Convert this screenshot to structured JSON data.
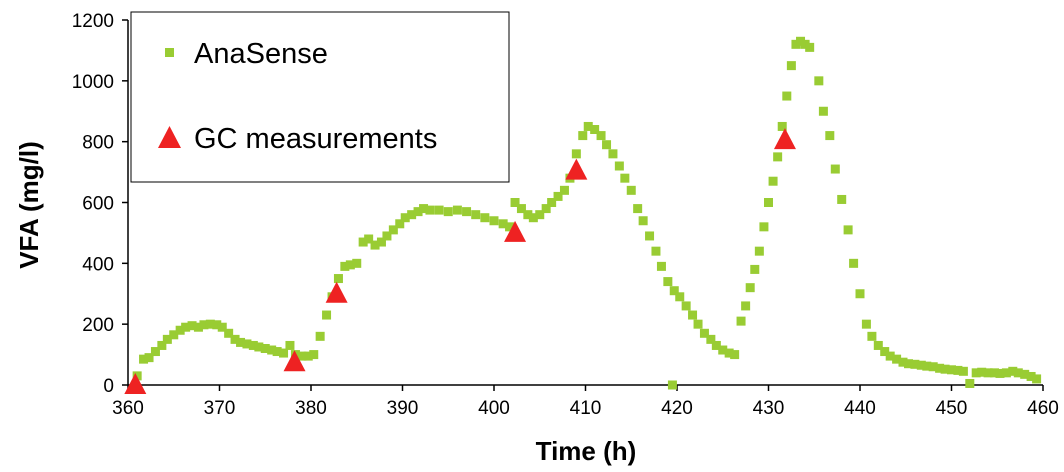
{
  "chart_data": {
    "type": "scatter",
    "title": "",
    "xlabel": "Time (h)",
    "ylabel": "VFA (mg/l)",
    "xlim": [
      360,
      460
    ],
    "ylim": [
      0,
      1200
    ],
    "xticks": [
      360,
      370,
      380,
      390,
      400,
      410,
      420,
      430,
      440,
      450,
      460
    ],
    "yticks": [
      0,
      200,
      400,
      600,
      800,
      1000,
      1200
    ],
    "grid": false,
    "legend": "top-left",
    "series": [
      {
        "name": "AnaSense",
        "marker": "square",
        "color": "#99cc33",
        "points": [
          [
            361,
            30
          ],
          [
            361.7,
            85
          ],
          [
            362.3,
            90
          ],
          [
            363,
            110
          ],
          [
            363.7,
            130
          ],
          [
            364.3,
            150
          ],
          [
            365,
            165
          ],
          [
            365.7,
            180
          ],
          [
            366.3,
            190
          ],
          [
            367,
            195
          ],
          [
            367.7,
            190
          ],
          [
            368.3,
            198
          ],
          [
            369,
            200
          ],
          [
            369.7,
            198
          ],
          [
            370.3,
            190
          ],
          [
            371,
            170
          ],
          [
            371.7,
            150
          ],
          [
            372.3,
            140
          ],
          [
            373,
            135
          ],
          [
            373.7,
            130
          ],
          [
            374.3,
            125
          ],
          [
            375,
            120
          ],
          [
            375.7,
            115
          ],
          [
            376.3,
            110
          ],
          [
            377,
            105
          ],
          [
            377.7,
            130
          ],
          [
            378.3,
            100
          ],
          [
            379,
            95
          ],
          [
            379.7,
            95
          ],
          [
            380.3,
            100
          ],
          [
            381,
            160
          ],
          [
            381.7,
            230
          ],
          [
            382.3,
            290
          ],
          [
            383,
            350
          ],
          [
            383.7,
            390
          ],
          [
            384.3,
            395
          ],
          [
            385,
            400
          ],
          [
            385.7,
            470
          ],
          [
            386.3,
            480
          ],
          [
            387,
            460
          ],
          [
            387.7,
            470
          ],
          [
            388.3,
            490
          ],
          [
            389,
            510
          ],
          [
            389.7,
            530
          ],
          [
            390.3,
            550
          ],
          [
            391,
            560
          ],
          [
            391.7,
            570
          ],
          [
            392.3,
            580
          ],
          [
            393,
            575
          ],
          [
            394,
            575
          ],
          [
            395,
            570
          ],
          [
            396,
            575
          ],
          [
            397,
            570
          ],
          [
            398,
            560
          ],
          [
            399,
            550
          ],
          [
            400,
            540
          ],
          [
            401,
            530
          ],
          [
            401.7,
            520
          ],
          [
            402.3,
            600
          ],
          [
            403,
            580
          ],
          [
            403.7,
            560
          ],
          [
            404.3,
            550
          ],
          [
            405,
            560
          ],
          [
            405.7,
            580
          ],
          [
            406.3,
            600
          ],
          [
            407,
            620
          ],
          [
            407.7,
            640
          ],
          [
            408.3,
            680
          ],
          [
            409,
            760
          ],
          [
            409.7,
            820
          ],
          [
            410.3,
            850
          ],
          [
            411,
            840
          ],
          [
            411.7,
            820
          ],
          [
            412.3,
            790
          ],
          [
            413,
            760
          ],
          [
            413.7,
            720
          ],
          [
            414.3,
            680
          ],
          [
            415,
            640
          ],
          [
            415.7,
            580
          ],
          [
            416.3,
            540
          ],
          [
            417,
            490
          ],
          [
            417.7,
            440
          ],
          [
            418.3,
            390
          ],
          [
            419,
            340
          ],
          [
            419.7,
            310
          ],
          [
            420.3,
            290
          ],
          [
            421,
            260
          ],
          [
            421.7,
            230
          ],
          [
            422.3,
            200
          ],
          [
            423,
            170
          ],
          [
            423.7,
            150
          ],
          [
            424.3,
            130
          ],
          [
            425,
            115
          ],
          [
            425.7,
            105
          ],
          [
            426.3,
            100
          ],
          [
            419.5,
            0
          ],
          [
            427,
            210
          ],
          [
            427.5,
            260
          ],
          [
            428,
            320
          ],
          [
            428.5,
            380
          ],
          [
            429,
            440
          ],
          [
            429.5,
            520
          ],
          [
            430,
            600
          ],
          [
            430.5,
            670
          ],
          [
            431,
            750
          ],
          [
            431.5,
            850
          ],
          [
            432,
            950
          ],
          [
            432.5,
            1050
          ],
          [
            433,
            1120
          ],
          [
            433.5,
            1130
          ],
          [
            434,
            1120
          ],
          [
            434.5,
            1110
          ],
          [
            435.5,
            1000
          ],
          [
            436,
            900
          ],
          [
            436.7,
            820
          ],
          [
            437.3,
            710
          ],
          [
            438,
            610
          ],
          [
            438.7,
            510
          ],
          [
            439.3,
            400
          ],
          [
            440,
            300
          ],
          [
            440.7,
            200
          ],
          [
            441.3,
            160
          ],
          [
            442,
            130
          ],
          [
            442.7,
            110
          ],
          [
            443.3,
            95
          ],
          [
            444,
            85
          ],
          [
            444.7,
            75
          ],
          [
            445.3,
            70
          ],
          [
            446,
            68
          ],
          [
            446.7,
            65
          ],
          [
            447.3,
            62
          ],
          [
            448,
            60
          ],
          [
            448.7,
            55
          ],
          [
            449.3,
            52
          ],
          [
            450,
            50
          ],
          [
            450.7,
            48
          ],
          [
            451.3,
            45
          ],
          [
            452,
            5
          ],
          [
            452.7,
            40
          ],
          [
            453.3,
            42
          ],
          [
            454,
            40
          ],
          [
            454.7,
            40
          ],
          [
            455.3,
            38
          ],
          [
            456,
            40
          ],
          [
            456.7,
            45
          ],
          [
            457.3,
            40
          ],
          [
            458,
            35
          ],
          [
            458.7,
            28
          ],
          [
            459.3,
            20
          ]
        ]
      },
      {
        "name": "GC measurements",
        "marker": "triangle",
        "color": "#ee2222",
        "points": [
          [
            360.8,
            0
          ],
          [
            378.2,
            75
          ],
          [
            382.8,
            300
          ],
          [
            402.3,
            500
          ],
          [
            409,
            705
          ],
          [
            431.8,
            805
          ]
        ]
      }
    ]
  }
}
